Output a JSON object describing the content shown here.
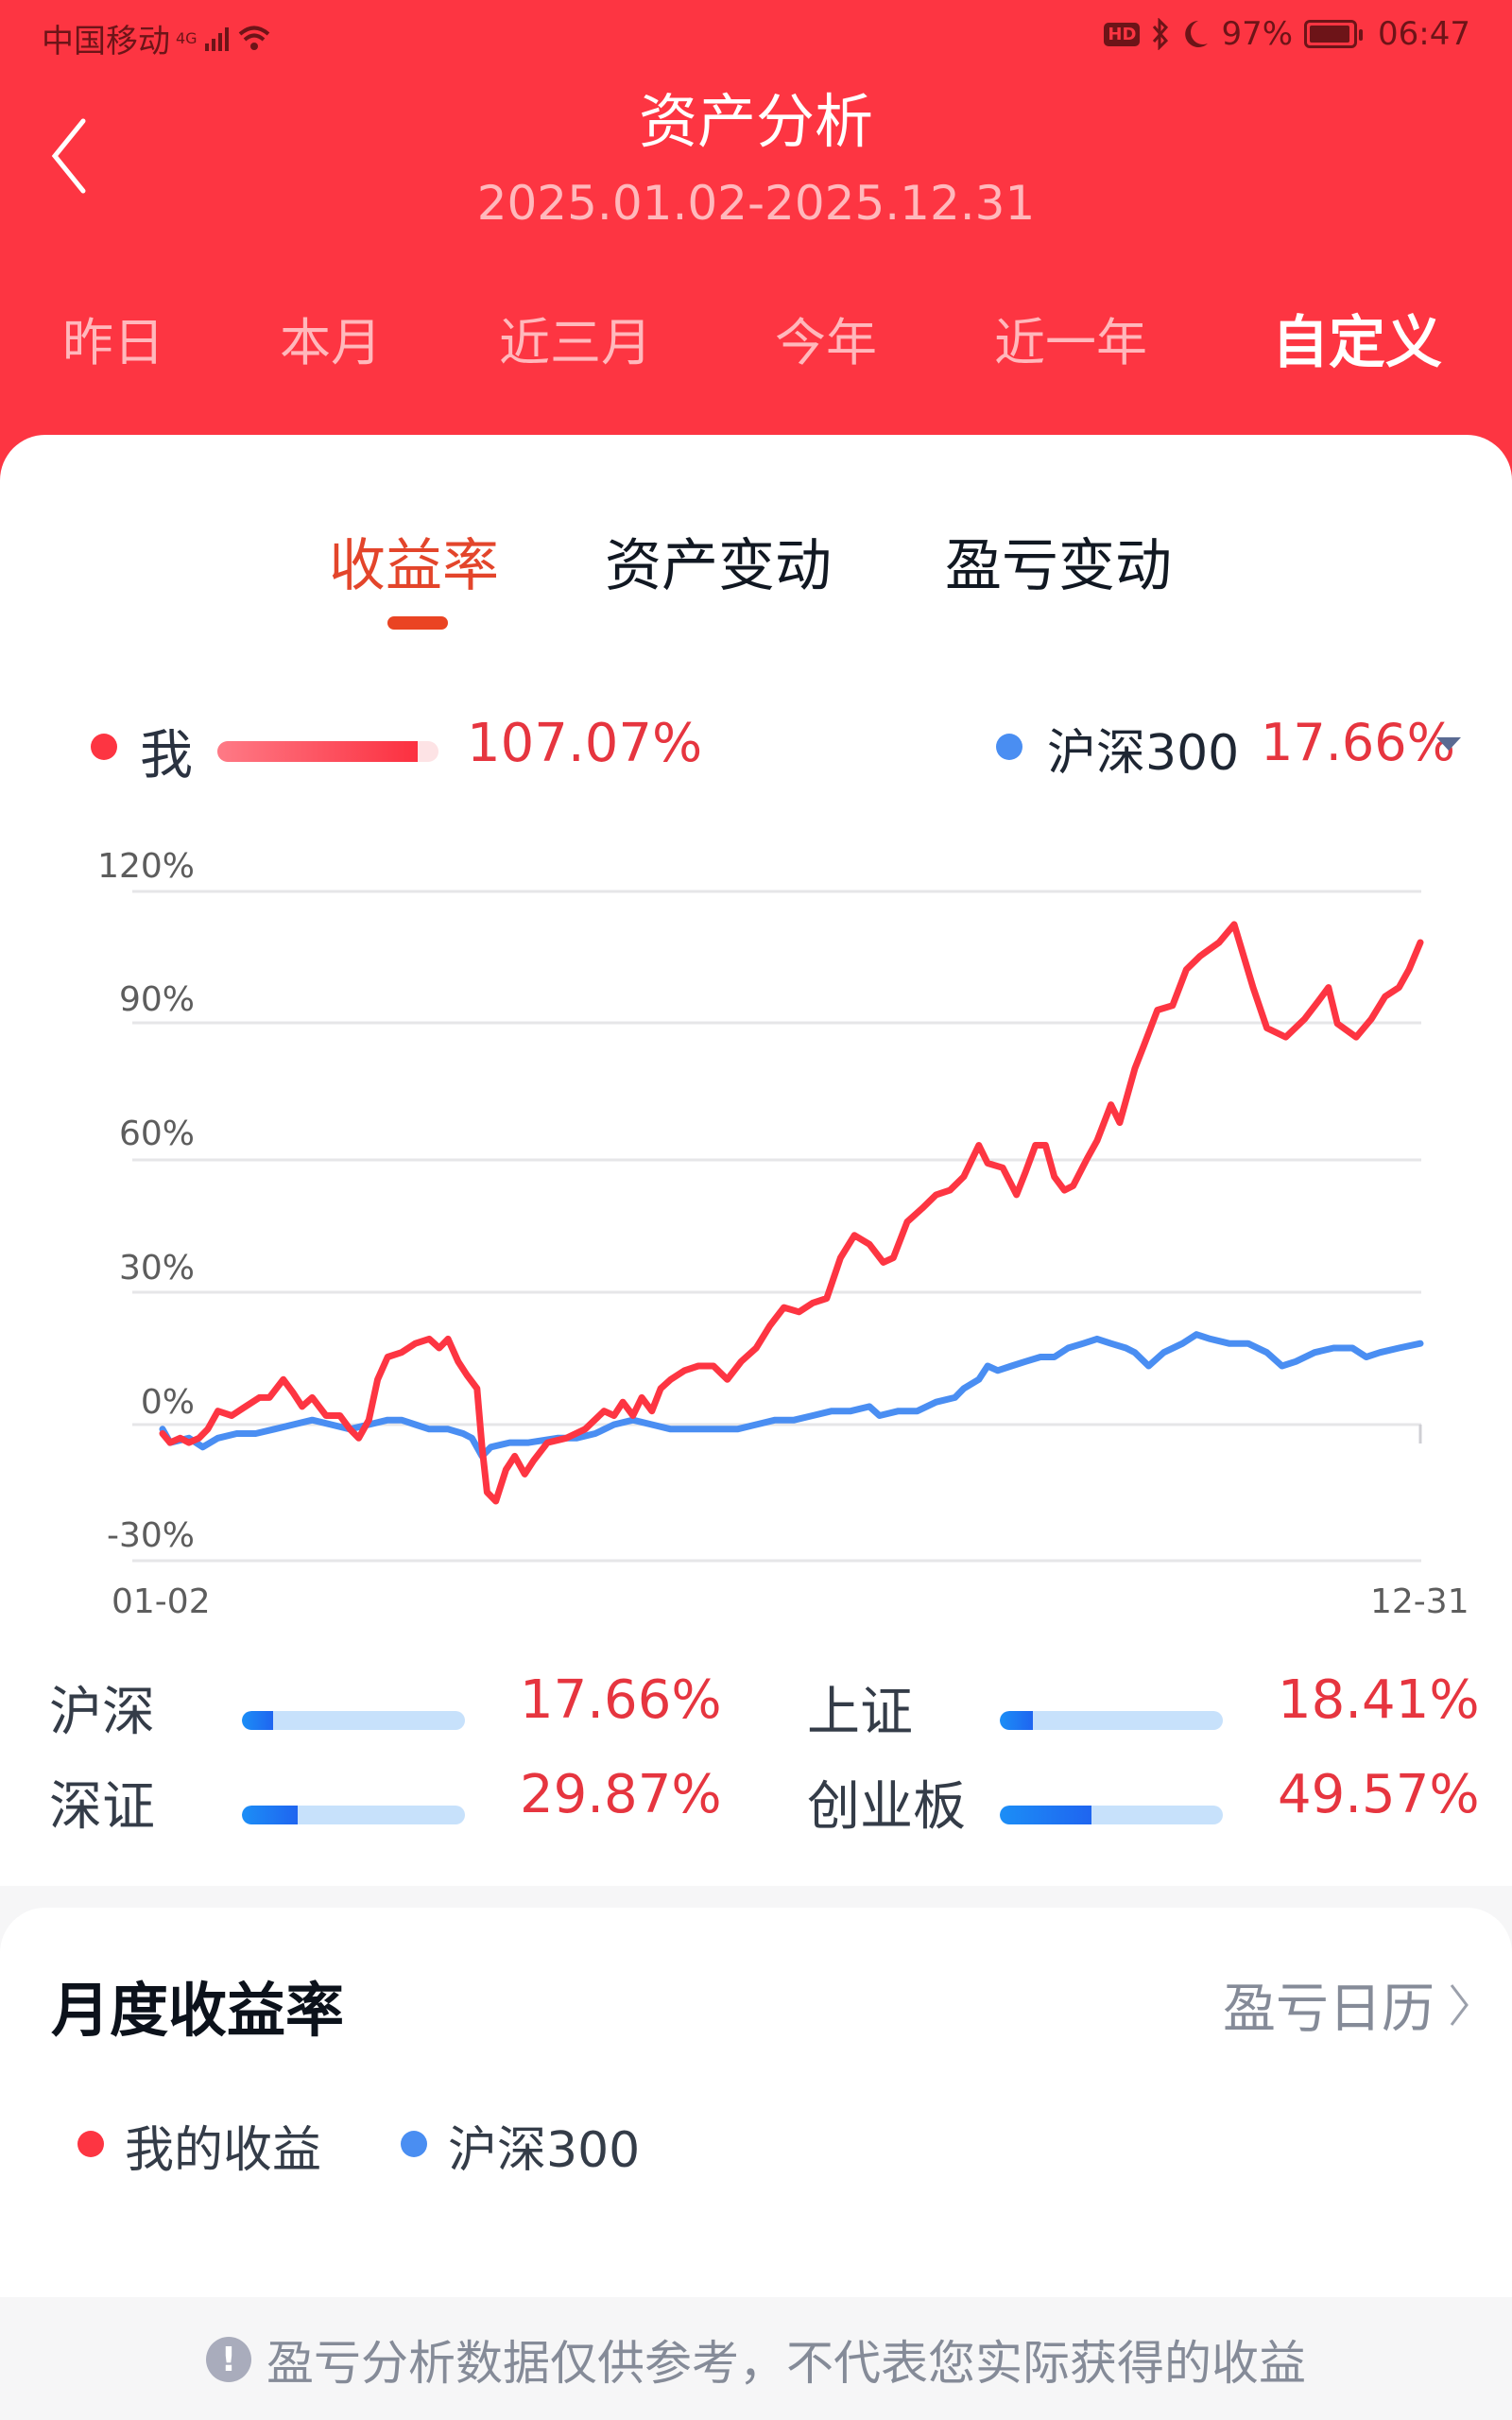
{
  "status_bar": {
    "carrier": "中国移动",
    "network": "4G",
    "hd": "HD",
    "battery": "97%",
    "time": "06:47"
  },
  "header": {
    "title": "资产分析",
    "date_range": "2025.01.02-2025.12.31",
    "periods": [
      "昨日",
      "本月",
      "近三月",
      "今年",
      "近一年",
      "自定义"
    ],
    "active_period": "自定义"
  },
  "tabs": {
    "items": [
      "收益率",
      "资产变动",
      "盈亏变动"
    ],
    "active": "收益率"
  },
  "legend": {
    "me_label": "我",
    "me_value": "107.07%",
    "index_label": "沪深300",
    "index_value": "17.66%"
  },
  "colors": {
    "brand": "#fd3542",
    "me_line": "#fd3542",
    "index_line": "#4a8ef2",
    "positive": "#e6353f",
    "tab_active": "#e3452b"
  },
  "chart_data": {
    "type": "line",
    "title": "收益率",
    "xlabel": "",
    "ylabel": "",
    "x_tick_labels": [
      "01-02",
      "12-31"
    ],
    "y_tick_labels": [
      "120%",
      "90%",
      "60%",
      "30%",
      "0%",
      "-30%"
    ],
    "ylim": [
      -30,
      120
    ],
    "grid": true,
    "legend_position": "top",
    "x_progress": [
      0,
      0.006,
      0.014,
      0.021,
      0.029,
      0.036,
      0.044,
      0.055,
      0.066,
      0.077,
      0.085,
      0.096,
      0.104,
      0.111,
      0.119,
      0.13,
      0.141,
      0.149,
      0.156,
      0.164,
      0.171,
      0.179,
      0.19,
      0.201,
      0.212,
      0.22,
      0.227,
      0.235,
      0.242,
      0.25,
      0.254,
      0.258,
      0.265,
      0.273,
      0.28,
      0.288,
      0.295,
      0.306,
      0.321,
      0.336,
      0.351,
      0.359,
      0.366,
      0.374,
      0.381,
      0.389,
      0.396,
      0.404,
      0.415,
      0.426,
      0.438,
      0.449,
      0.46,
      0.472,
      0.483,
      0.494,
      0.506,
      0.517,
      0.528,
      0.539,
      0.539,
      0.566,
      0.577,
      0.573,
      0.584,
      0.592,
      0.604,
      0.615,
      0.626,
      0.637,
      0.649,
      0.656,
      0.668,
      0.679,
      0.686,
      0.694,
      0.702,
      0.709,
      0.717,
      0.724,
      0.735,
      0.747,
      0.736,
      0.744,
      0.761,
      0.77,
      0.781,
      0.792,
      0.807,
      0.819,
      0.83,
      0.84,
      0.852,
      0.869,
      0.881,
      0.896,
      0.91,
      0.926,
      0.937,
      0.945,
      0.953,
      0.961,
      0.976,
      0.987,
      0.998,
      1
    ],
    "series": [
      {
        "name": "我",
        "color": "#fd3542",
        "points": [
          [
            0,
            -2
          ],
          [
            0.006,
            -4
          ],
          [
            0.014,
            -3
          ],
          [
            0.021,
            -4
          ],
          [
            0.029,
            -3
          ],
          [
            0.036,
            -1
          ],
          [
            0.044,
            3
          ],
          [
            0.055,
            2
          ],
          [
            0.066,
            4
          ],
          [
            0.077,
            6
          ],
          [
            0.085,
            6
          ],
          [
            0.096,
            10
          ],
          [
            0.104,
            7
          ],
          [
            0.111,
            4
          ],
          [
            0.119,
            6
          ],
          [
            0.13,
            2
          ],
          [
            0.141,
            2
          ],
          [
            0.149,
            -1
          ],
          [
            0.156,
            -3
          ],
          [
            0.164,
            1
          ],
          [
            0.171,
            10
          ],
          [
            0.179,
            15
          ],
          [
            0.19,
            16
          ],
          [
            0.201,
            18
          ],
          [
            0.212,
            19
          ],
          [
            0.22,
            17
          ],
          [
            0.227,
            19
          ],
          [
            0.235,
            14
          ],
          [
            0.242,
            11
          ],
          [
            0.25,
            8
          ],
          [
            0.254,
            -5
          ],
          [
            0.258,
            -15
          ],
          [
            0.265,
            -17
          ],
          [
            0.273,
            -10
          ],
          [
            0.28,
            -7
          ],
          [
            0.288,
            -11
          ],
          [
            0.295,
            -8
          ],
          [
            0.306,
            -4
          ],
          [
            0.321,
            -3
          ],
          [
            0.336,
            -1
          ],
          [
            0.351,
            3
          ],
          [
            0.359,
            2
          ],
          [
            0.366,
            5
          ],
          [
            0.374,
            2
          ],
          [
            0.381,
            6
          ],
          [
            0.389,
            3
          ],
          [
            0.396,
            8
          ],
          [
            0.404,
            10
          ],
          [
            0.415,
            12
          ],
          [
            0.426,
            13
          ],
          [
            0.438,
            13
          ],
          [
            0.449,
            10
          ],
          [
            0.46,
            14
          ],
          [
            0.472,
            17
          ],
          [
            0.483,
            22
          ],
          [
            0.494,
            26
          ],
          [
            0.506,
            25
          ],
          [
            0.517,
            27
          ],
          [
            0.528,
            28
          ],
          [
            0.539,
            37
          ],
          [
            0.55,
            42
          ],
          [
            0.562,
            40
          ],
          [
            0.573,
            36
          ],
          [
            0.581,
            37
          ],
          [
            0.592,
            45
          ],
          [
            0.604,
            48
          ],
          [
            0.615,
            51
          ],
          [
            0.626,
            52
          ],
          [
            0.637,
            55
          ],
          [
            0.649,
            62
          ],
          [
            0.656,
            58
          ],
          [
            0.668,
            57
          ],
          [
            0.679,
            51
          ],
          [
            0.686,
            56
          ],
          [
            0.694,
            62
          ],
          [
            0.702,
            62
          ],
          [
            0.709,
            55
          ],
          [
            0.717,
            52
          ],
          [
            0.724,
            53
          ],
          [
            0.735,
            59
          ],
          [
            0.743,
            63
          ],
          [
            0.754,
            71
          ],
          [
            0.761,
            67
          ],
          [
            0.773,
            79
          ],
          [
            0.78,
            84
          ],
          [
            0.791,
            92
          ],
          [
            0.803,
            93
          ],
          [
            0.814,
            101
          ],
          [
            0.825,
            104
          ],
          [
            0.84,
            107
          ],
          [
            0.852,
            111
          ],
          [
            0.867,
            97
          ],
          [
            0.878,
            88
          ],
          [
            0.893,
            86
          ],
          [
            0.908,
            90
          ],
          [
            0.919,
            94
          ],
          [
            0.927,
            97
          ],
          [
            0.934,
            89
          ],
          [
            0.949,
            86
          ],
          [
            0.961,
            90
          ],
          [
            0.972,
            95
          ],
          [
            0.983,
            97
          ],
          [
            0.991,
            101
          ],
          [
            1,
            107
          ]
        ]
      },
      {
        "name": "沪深300",
        "color": "#4a8ef2",
        "points": [
          [
            0,
            -1
          ],
          [
            0.006,
            -4
          ],
          [
            0.021,
            -3
          ],
          [
            0.032,
            -5
          ],
          [
            0.044,
            -3
          ],
          [
            0.059,
            -2
          ],
          [
            0.074,
            -2
          ],
          [
            0.089,
            -1
          ],
          [
            0.104,
            0
          ],
          [
            0.119,
            1
          ],
          [
            0.134,
            0
          ],
          [
            0.149,
            -1
          ],
          [
            0.164,
            0
          ],
          [
            0.179,
            1
          ],
          [
            0.19,
            1
          ],
          [
            0.201,
            0
          ],
          [
            0.212,
            -1
          ],
          [
            0.227,
            -1
          ],
          [
            0.239,
            -2
          ],
          [
            0.246,
            -3
          ],
          [
            0.254,
            -7
          ],
          [
            0.261,
            -5
          ],
          [
            0.276,
            -4
          ],
          [
            0.291,
            -4
          ],
          [
            0.314,
            -3
          ],
          [
            0.329,
            -3
          ],
          [
            0.344,
            -2
          ],
          [
            0.359,
            0
          ],
          [
            0.374,
            1
          ],
          [
            0.389,
            0
          ],
          [
            0.404,
            -1
          ],
          [
            0.419,
            -1
          ],
          [
            0.434,
            -1
          ],
          [
            0.457,
            -1
          ],
          [
            0.472,
            0
          ],
          [
            0.487,
            1
          ],
          [
            0.502,
            1
          ],
          [
            0.517,
            2
          ],
          [
            0.532,
            3
          ],
          [
            0.547,
            3
          ],
          [
            0.562,
            4
          ],
          [
            0.57,
            2
          ],
          [
            0.585,
            3
          ],
          [
            0.6,
            3
          ],
          [
            0.615,
            5
          ],
          [
            0.63,
            6
          ],
          [
            0.637,
            8
          ],
          [
            0.649,
            10
          ],
          [
            0.656,
            13
          ],
          [
            0.664,
            12
          ],
          [
            0.675,
            13
          ],
          [
            0.686,
            14
          ],
          [
            0.698,
            15
          ],
          [
            0.709,
            15
          ],
          [
            0.72,
            17
          ],
          [
            0.732,
            18
          ],
          [
            0.743,
            19
          ],
          [
            0.754,
            18
          ],
          [
            0.766,
            17
          ],
          [
            0.773,
            16
          ],
          [
            0.784,
            13
          ],
          [
            0.796,
            16
          ],
          [
            0.811,
            18
          ],
          [
            0.822,
            20
          ],
          [
            0.833,
            19
          ],
          [
            0.848,
            18
          ],
          [
            0.863,
            18
          ],
          [
            0.878,
            16
          ],
          [
            0.89,
            13
          ],
          [
            0.901,
            14
          ],
          [
            0.916,
            16
          ],
          [
            0.931,
            17
          ],
          [
            0.946,
            17
          ],
          [
            0.957,
            15
          ],
          [
            0.968,
            16
          ],
          [
            0.983,
            17
          ],
          [
            1,
            18
          ]
        ]
      }
    ]
  },
  "comparison": [
    {
      "label": "沪深",
      "value": "17.66%",
      "ratio": 0.14
    },
    {
      "label": "上证",
      "value": "18.41%",
      "ratio": 0.15
    },
    {
      "label": "深证",
      "value": "29.87%",
      "ratio": 0.25
    },
    {
      "label": "创业板",
      "value": "49.57%",
      "ratio": 0.41
    }
  ],
  "monthly": {
    "title": "月度收益率",
    "calendar_link": "盈亏日历",
    "legend_me": "我的收益",
    "legend_index": "沪深300"
  },
  "footer": {
    "disclaimer": "盈亏分析数据仅供参考，不代表您实际获得的收益"
  }
}
